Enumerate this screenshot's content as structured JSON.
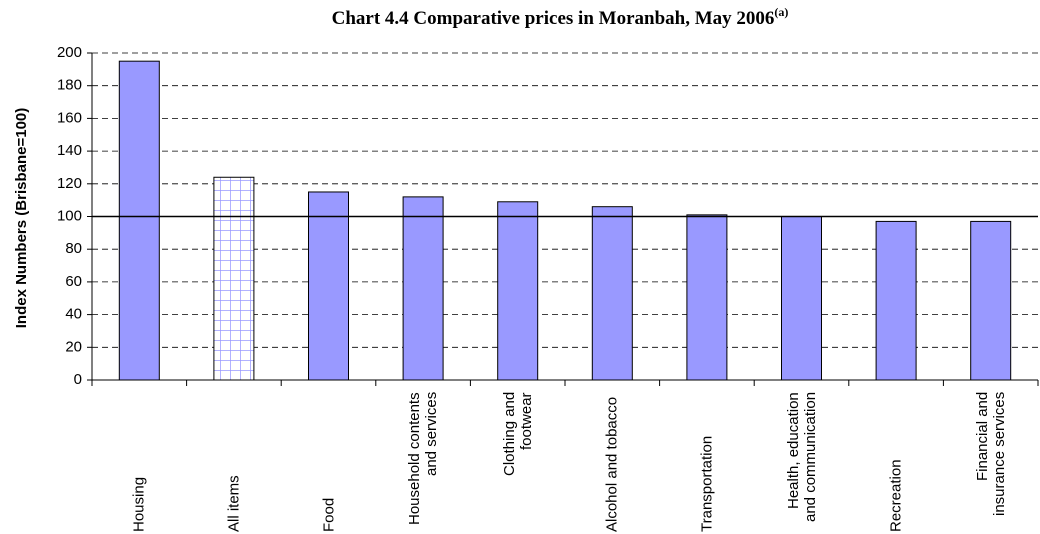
{
  "chart_data": {
    "type": "bar",
    "title": "Chart 4.4 Comparative prices in Moranbah, May 2006",
    "title_superscript": "(a)",
    "y_label": "Index Numbers (Brisbane=100)",
    "categories": [
      "Housing",
      "All items",
      "Food",
      "Household contents and services",
      "Clothing and footwear",
      "Alcohol and tobacco",
      "Transportation",
      "Health, education and communication",
      "Recreation",
      "Financial and insurance services"
    ],
    "values": [
      195,
      124,
      115,
      112,
      109,
      106,
      101,
      100,
      97,
      97
    ],
    "color": "#9999ff",
    "pattern_index": 1,
    "reference_line": 100,
    "ylim": [
      0,
      200
    ],
    "yticks": [
      0,
      20,
      40,
      60,
      80,
      100,
      120,
      140,
      160,
      180,
      200
    ],
    "grid": true
  }
}
